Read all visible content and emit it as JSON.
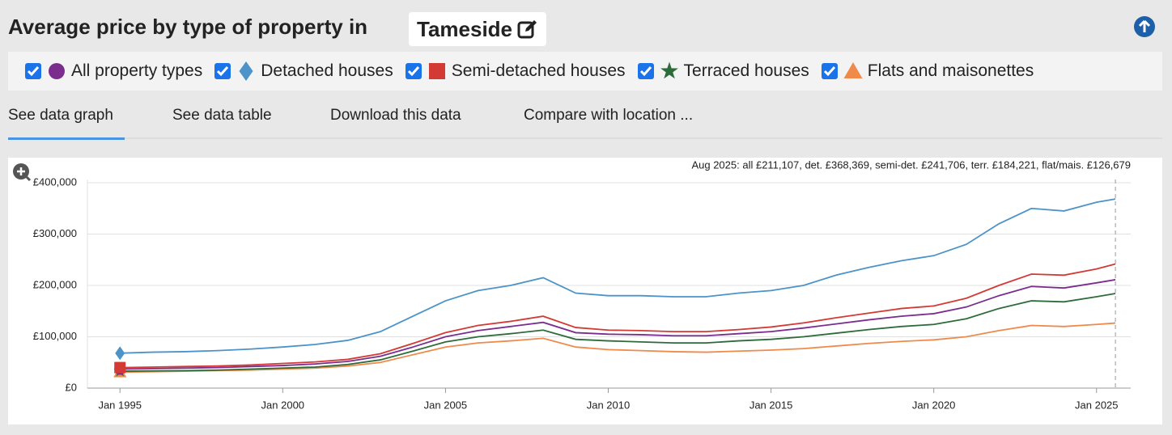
{
  "header": {
    "title": "Average price by type of property in",
    "location": "Tameside"
  },
  "tabs": [
    "See data graph",
    "See data table",
    "Download this data",
    "Compare with location ..."
  ],
  "chart_data": {
    "type": "line",
    "annotation": "Aug 2025: all £211,107, det. £368,369, semi-det. £241,706, terr. £184,221, flat/mais. £126,679",
    "x": [
      1995,
      1996,
      1997,
      1998,
      1999,
      2000,
      2001,
      2002,
      2003,
      2004,
      2005,
      2006,
      2007,
      2008,
      2009,
      2010,
      2011,
      2012,
      2013,
      2014,
      2015,
      2016,
      2017,
      2018,
      2019,
      2020,
      2021,
      2022,
      2023,
      2024,
      2025,
      2025.58
    ],
    "series": [
      {
        "name": "All property types",
        "color": "#7b2d8e",
        "marker": "circle",
        "values": [
          37000,
          38000,
          39000,
          40000,
          42000,
          44000,
          47000,
          52000,
          62000,
          80000,
          100000,
          112000,
          120000,
          128000,
          108000,
          105000,
          104000,
          102000,
          102000,
          106000,
          110000,
          117000,
          125000,
          133000,
          140000,
          145000,
          158000,
          180000,
          198000,
          195000,
          205000,
          211107
        ]
      },
      {
        "name": "Detached houses",
        "color": "#4b93c8",
        "marker": "diamond",
        "values": [
          68000,
          70000,
          71000,
          73000,
          76000,
          80000,
          85000,
          93000,
          110000,
          140000,
          170000,
          190000,
          200000,
          215000,
          185000,
          180000,
          180000,
          178000,
          178000,
          185000,
          190000,
          200000,
          220000,
          235000,
          248000,
          258000,
          280000,
          320000,
          350000,
          345000,
          362000,
          368369
        ]
      },
      {
        "name": "Semi-detached houses",
        "color": "#d43a35",
        "marker": "square",
        "values": [
          40000,
          41000,
          42000,
          43000,
          45000,
          48000,
          51000,
          56000,
          67000,
          87000,
          108000,
          122000,
          130000,
          140000,
          118000,
          113000,
          112000,
          110000,
          110000,
          114000,
          119000,
          127000,
          137000,
          146000,
          155000,
          160000,
          175000,
          200000,
          222000,
          220000,
          232000,
          241706
        ]
      },
      {
        "name": "Terraced houses",
        "color": "#2e6b3a",
        "marker": "star",
        "values": [
          33000,
          33500,
          34000,
          35000,
          37000,
          39000,
          41000,
          46000,
          55000,
          72000,
          90000,
          100000,
          106000,
          113000,
          95000,
          92000,
          90000,
          88000,
          88000,
          92000,
          95000,
          100000,
          107000,
          114000,
          120000,
          124000,
          135000,
          155000,
          170000,
          168000,
          178000,
          184221
        ]
      },
      {
        "name": "Flats and maisonettes",
        "color": "#f08a4b",
        "marker": "triangle",
        "values": [
          31000,
          32000,
          33000,
          34000,
          35000,
          37000,
          39000,
          43000,
          50000,
          65000,
          80000,
          88000,
          92000,
          97000,
          80000,
          75000,
          73000,
          71000,
          70000,
          72000,
          74000,
          77000,
          82000,
          87000,
          91000,
          94000,
          100000,
          112000,
          122000,
          120000,
          124000,
          126679
        ]
      }
    ],
    "xlim": [
      1994,
      2026.05
    ],
    "xticks": [
      {
        "value": 1995,
        "label": "Jan 1995"
      },
      {
        "value": 2000,
        "label": "Jan 2000"
      },
      {
        "value": 2005,
        "label": "Jan 2005"
      },
      {
        "value": 2010,
        "label": "Jan 2010"
      },
      {
        "value": 2015,
        "label": "Jan 2015"
      },
      {
        "value": 2020,
        "label": "Jan 2020"
      },
      {
        "value": 2025,
        "label": "Jan 2025"
      }
    ],
    "ylim": [
      0,
      400000
    ],
    "yticks": [
      {
        "value": 0,
        "label": "£0"
      },
      {
        "value": 100000,
        "label": "£100,000"
      },
      {
        "value": 200000,
        "label": "£200,000"
      },
      {
        "value": 300000,
        "label": "£300,000"
      },
      {
        "value": 400000,
        "label": "£400,000"
      }
    ],
    "grid": true
  }
}
